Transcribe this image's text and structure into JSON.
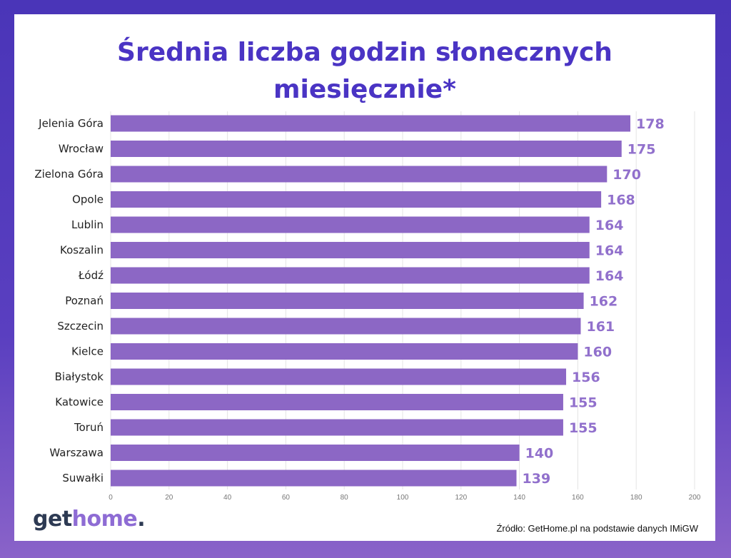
{
  "title_line1": "Średnia liczba godzin słonecznych",
  "title_line2": "miesięcznie*",
  "logo": {
    "part1": "get",
    "part2": "home",
    "part3": "."
  },
  "source": "Źródło: GetHome.pl na podstawie danych IMiGW",
  "colors": {
    "bar": "#8c67c5",
    "label": "#9170cc",
    "title": "#4a34c4",
    "logo_dark": "#2d3a53",
    "logo_accent": "#8e6cd4"
  },
  "chart_data": {
    "type": "bar",
    "orientation": "horizontal",
    "categories": [
      "Jelenia Góra",
      "Wrocław",
      "Zielona Góra",
      "Opole",
      "Lublin",
      "Koszalin",
      "Łódź",
      "Poznań",
      "Szczecin",
      "Kielce",
      "Białystok",
      "Katowice",
      "Toruń",
      "Warszawa",
      "Suwałki"
    ],
    "values": [
      178,
      175,
      170,
      168,
      164,
      164,
      164,
      162,
      161,
      160,
      156,
      155,
      155,
      140,
      139
    ],
    "xlim": [
      0,
      200
    ],
    "xticks": [
      "0",
      "20",
      "40",
      "60",
      "80",
      "100",
      "120",
      "140",
      "160",
      "180",
      "200"
    ],
    "grid": true,
    "data_labels": true
  }
}
